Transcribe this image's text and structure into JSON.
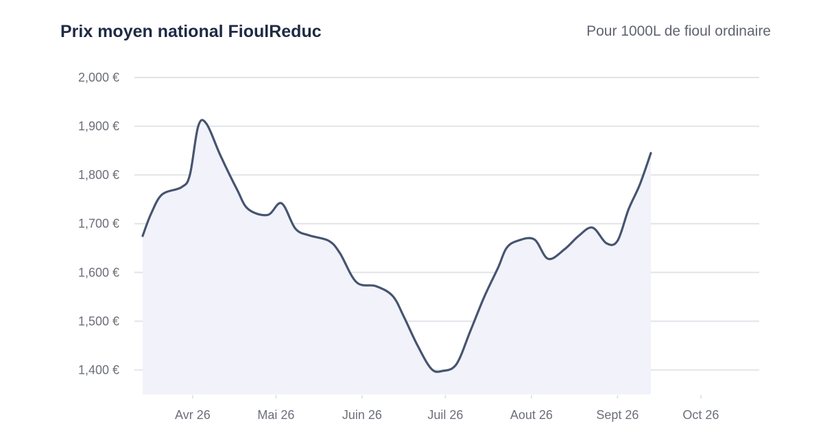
{
  "header": {
    "title": "Prix moyen national FioulReduc",
    "subtitle": "Pour 1000L de fioul ordinaire"
  },
  "colors": {
    "line": "#46546f",
    "fill": "#f1f2fa",
    "grid": "#e2e4ea",
    "text": "#6b6f78",
    "title": "#1f2a44"
  },
  "chart_data": {
    "type": "area",
    "title": "Prix moyen national FioulReduc",
    "subtitle": "Pour 1000L de fioul ordinaire",
    "xlabel": "",
    "ylabel": "",
    "ylim": [
      1350,
      2000
    ],
    "grid": true,
    "y_ticks": [
      {
        "value": 2000,
        "label": "2,000 €"
      },
      {
        "value": 1900,
        "label": "1,900 €"
      },
      {
        "value": 1800,
        "label": "1,800 €"
      },
      {
        "value": 1700,
        "label": "1,700 €"
      },
      {
        "value": 1600,
        "label": "1,600 €"
      },
      {
        "value": 1500,
        "label": "1,500 €"
      },
      {
        "value": 1400,
        "label": "1,400 €"
      }
    ],
    "x_ticks": [
      {
        "date": "2026-04-01",
        "label": "Avr 26"
      },
      {
        "date": "2026-05-01",
        "label": "Mai 26"
      },
      {
        "date": "2026-06-01",
        "label": "Juin 26"
      },
      {
        "date": "2026-07-01",
        "label": "Juil 26"
      },
      {
        "date": "2026-08-01",
        "label": "Aout 26"
      },
      {
        "date": "2026-09-01",
        "label": "Sept 26"
      },
      {
        "date": "2026-10-01",
        "label": "Oct 26"
      }
    ],
    "xlim": [
      "2026-03-14",
      "2026-10-03"
    ],
    "series": [
      {
        "points": [
          {
            "date": "2026-03-14",
            "y": 1675
          },
          {
            "date": "2026-03-17",
            "y": 1720
          },
          {
            "date": "2026-03-21",
            "y": 1760
          },
          {
            "date": "2026-03-28",
            "y": 1775
          },
          {
            "date": "2026-03-31",
            "y": 1800
          },
          {
            "date": "2026-04-03",
            "y": 1900
          },
          {
            "date": "2026-04-06",
            "y": 1905
          },
          {
            "date": "2026-04-11",
            "y": 1840
          },
          {
            "date": "2026-04-17",
            "y": 1770
          },
          {
            "date": "2026-04-21",
            "y": 1730
          },
          {
            "date": "2026-04-28",
            "y": 1718
          },
          {
            "date": "2026-05-03",
            "y": 1742
          },
          {
            "date": "2026-05-08",
            "y": 1690
          },
          {
            "date": "2026-05-13",
            "y": 1676
          },
          {
            "date": "2026-05-20",
            "y": 1665
          },
          {
            "date": "2026-05-24",
            "y": 1640
          },
          {
            "date": "2026-05-30",
            "y": 1580
          },
          {
            "date": "2026-06-06",
            "y": 1572
          },
          {
            "date": "2026-06-12",
            "y": 1552
          },
          {
            "date": "2026-06-16",
            "y": 1510
          },
          {
            "date": "2026-06-21",
            "y": 1450
          },
          {
            "date": "2026-06-26",
            "y": 1402
          },
          {
            "date": "2026-06-30",
            "y": 1398
          },
          {
            "date": "2026-07-05",
            "y": 1412
          },
          {
            "date": "2026-07-10",
            "y": 1480
          },
          {
            "date": "2026-07-15",
            "y": 1550
          },
          {
            "date": "2026-07-20",
            "y": 1610
          },
          {
            "date": "2026-07-23",
            "y": 1650
          },
          {
            "date": "2026-07-27",
            "y": 1665
          },
          {
            "date": "2026-08-02",
            "y": 1668
          },
          {
            "date": "2026-08-07",
            "y": 1628
          },
          {
            "date": "2026-08-13",
            "y": 1648
          },
          {
            "date": "2026-08-18",
            "y": 1675
          },
          {
            "date": "2026-08-23",
            "y": 1692
          },
          {
            "date": "2026-08-28",
            "y": 1660
          },
          {
            "date": "2026-09-01",
            "y": 1665
          },
          {
            "date": "2026-09-05",
            "y": 1730
          },
          {
            "date": "2026-09-09",
            "y": 1780
          },
          {
            "date": "2026-09-13",
            "y": 1845
          }
        ]
      }
    ]
  }
}
